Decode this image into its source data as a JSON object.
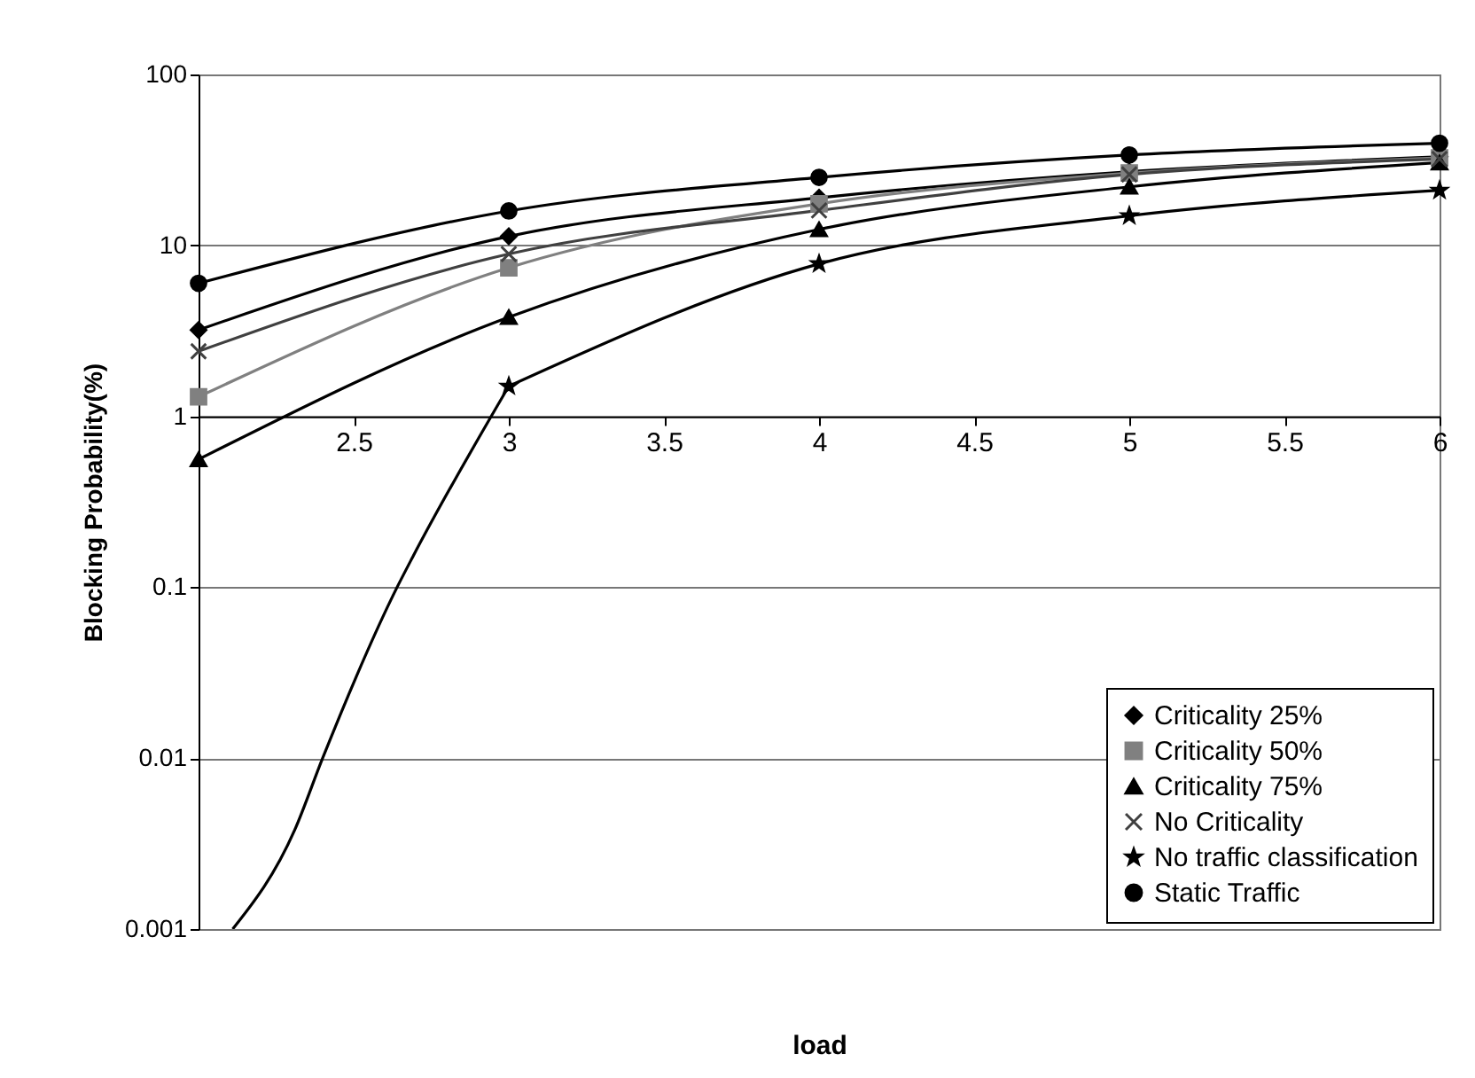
{
  "chart_data": {
    "type": "line",
    "xlabel": "load",
    "ylabel": "Blocking Probability(%)",
    "x": [
      2,
      3,
      4,
      5,
      6
    ],
    "xlim": [
      2,
      6
    ],
    "xticks": [
      2.5,
      3,
      3.5,
      4,
      4.5,
      5,
      5.5,
      6
    ],
    "ylim": [
      0.001,
      100
    ],
    "yticks": [
      0.001,
      0.01,
      0.1,
      1,
      10,
      100
    ],
    "log": true,
    "grid": "y",
    "legend": "bottom right",
    "series": [
      {
        "name": "Criticality 25%",
        "color": "#000000",
        "marker": "diamond",
        "values": [
          3.2,
          11.3,
          19,
          27,
          33
        ]
      },
      {
        "name": "Criticality 50%",
        "color": "#808080",
        "marker": "square",
        "values": [
          1.3,
          7.4,
          17.5,
          26.5,
          32.5
        ]
      },
      {
        "name": "Criticality 75%",
        "color": "#000000",
        "marker": "triangle",
        "values": [
          0.56,
          3.8,
          12.4,
          22,
          30.5
        ]
      },
      {
        "name": "No Criticality",
        "color": "#404040",
        "marker": "cross",
        "values": [
          2.4,
          8.9,
          16,
          26,
          32
        ]
      },
      {
        "name": "No traffic classification",
        "color": "#000000",
        "marker": "star",
        "x": [
          3,
          4,
          5,
          6
        ],
        "values": [
          1.5,
          7.8,
          14.9,
          21
        ]
      },
      {
        "name": "Static Traffic",
        "color": "#000000",
        "marker": "circle",
        "values": [
          6.0,
          15.9,
          25,
          33.8,
          39.6
        ]
      },
      {
        "color": "#000000",
        "marker": "none",
        "x": [
          2.11,
          2.31,
          2.4,
          2.64,
          2.69,
          3
        ],
        "values": [
          0.001,
          0.0038,
          0.01,
          0.1,
          0.15,
          1.5
        ]
      }
    ]
  }
}
